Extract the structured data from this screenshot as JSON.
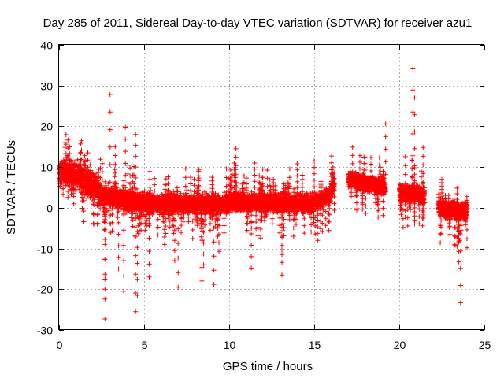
{
  "chart_data": {
    "type": "scatter",
    "title": "Day 285 of 2011, Sidereal Day-to-day VTEC variation (SDTVAR) for receiver azu1",
    "xlabel": "GPS time / hours",
    "ylabel": "SDTVAR / TECUs",
    "xlim": [
      0,
      25
    ],
    "ylim": [
      -30,
      40
    ],
    "xticks": [
      0,
      5,
      10,
      15,
      20,
      25
    ],
    "yticks": [
      -30,
      -20,
      -10,
      0,
      10,
      20,
      30,
      40
    ],
    "xtick_labels": [
      "0",
      "5",
      "10",
      "15",
      "20",
      "25"
    ],
    "ytick_labels": [
      "-30",
      "-20",
      "-10",
      "0",
      "10",
      "20",
      "30",
      "40"
    ],
    "grid": true,
    "marker": "+",
    "color": "#ff0000",
    "segments": [
      {
        "x_start": 0.0,
        "x_end": 1.0,
        "center_start": 9,
        "center_end": 8,
        "half_width": 4.5
      },
      {
        "x_start": 1.0,
        "x_end": 2.3,
        "center_start": 8,
        "center_end": 5,
        "half_width": 4.5
      },
      {
        "x_start": 2.3,
        "x_end": 5.5,
        "center_start": 3,
        "center_end": 1,
        "half_width": 3.5
      },
      {
        "x_start": 5.5,
        "x_end": 10.0,
        "center_start": 1,
        "center_end": 1,
        "half_width": 3.0
      },
      {
        "x_start": 10.0,
        "x_end": 15.0,
        "center_start": 1.5,
        "center_end": 1,
        "half_width": 3.0
      },
      {
        "x_start": 15.0,
        "x_end": 16.0,
        "center_start": 1.5,
        "center_end": 3,
        "half_width": 2.5
      },
      {
        "x_start": 16.0,
        "x_end": 16.2,
        "center_start": 6,
        "center_end": 6,
        "half_width": 3.0
      },
      {
        "x_start": 17.0,
        "x_end": 19.2,
        "center_start": 7,
        "center_end": 5,
        "half_width": 2.5
      },
      {
        "x_start": 20.0,
        "x_end": 21.5,
        "center_start": 4,
        "center_end": 3,
        "half_width": 3.0
      },
      {
        "x_start": 22.3,
        "x_end": 24.0,
        "center_start": 0,
        "center_end": -1,
        "half_width": 3.0
      }
    ],
    "outliers": [
      {
        "x": 2.7,
        "y": -27.3
      },
      {
        "x": 2.7,
        "y": -20
      },
      {
        "x": 3.0,
        "y": 27.8
      },
      {
        "x": 3.3,
        "y": 15
      },
      {
        "x": 3.5,
        "y": -15
      },
      {
        "x": 3.8,
        "y": -20.5
      },
      {
        "x": 3.9,
        "y": 19.8
      },
      {
        "x": 4.5,
        "y": 18
      },
      {
        "x": 4.5,
        "y": -25.5
      },
      {
        "x": 4.6,
        "y": -21.5
      },
      {
        "x": 5.3,
        "y": -17
      },
      {
        "x": 6.2,
        "y": -9
      },
      {
        "x": 6.8,
        "y": -13
      },
      {
        "x": 7.0,
        "y": -19.5
      },
      {
        "x": 8.2,
        "y": 9
      },
      {
        "x": 8.4,
        "y": -18
      },
      {
        "x": 8.5,
        "y": -14
      },
      {
        "x": 9.0,
        "y": 7.5
      },
      {
        "x": 9.1,
        "y": -18.8
      },
      {
        "x": 9.4,
        "y": -10.7
      },
      {
        "x": 10.4,
        "y": 14.5
      },
      {
        "x": 10.3,
        "y": 11
      },
      {
        "x": 11.3,
        "y": -14.8
      },
      {
        "x": 11.5,
        "y": 11
      },
      {
        "x": 12.6,
        "y": 7
      },
      {
        "x": 13.1,
        "y": -11.5
      },
      {
        "x": 13.1,
        "y": -16.5
      },
      {
        "x": 14.0,
        "y": 10.8
      },
      {
        "x": 14.3,
        "y": 8
      },
      {
        "x": 15.0,
        "y": 11.5
      },
      {
        "x": 15.2,
        "y": -8
      },
      {
        "x": 16.1,
        "y": 10
      },
      {
        "x": 19.2,
        "y": 20.6
      },
      {
        "x": 20.8,
        "y": 34.3
      },
      {
        "x": 20.9,
        "y": 27
      },
      {
        "x": 20.9,
        "y": -4
      },
      {
        "x": 21.4,
        "y": 14.8
      },
      {
        "x": 21.4,
        "y": -2.5
      },
      {
        "x": 22.5,
        "y": 7
      },
      {
        "x": 23.5,
        "y": -8.5
      },
      {
        "x": 23.5,
        "y": -13.3
      },
      {
        "x": 23.6,
        "y": -23.3
      }
    ]
  }
}
